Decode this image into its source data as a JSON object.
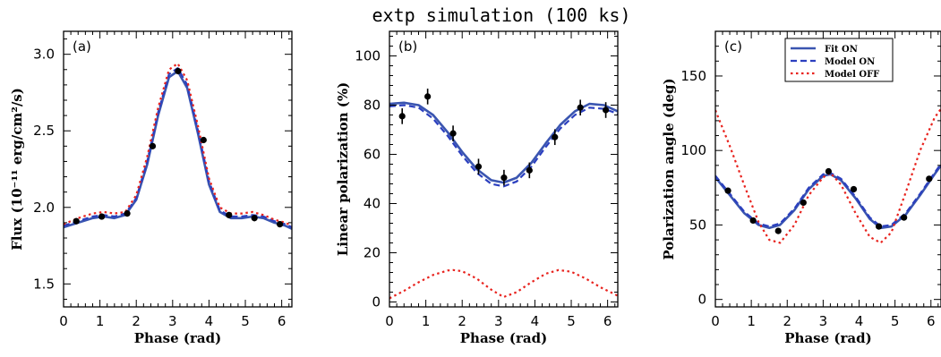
{
  "figure_title": "extp simulation (100 ks)",
  "colors": {
    "fit": "#3a55b0",
    "model_on": "#2b3fbf",
    "model_off": "#e8231e",
    "points": "#000000"
  },
  "chart_data": [
    {
      "type": "line",
      "panel_label": "(a)",
      "title": "",
      "xlabel": "Phase (rad)",
      "ylabel": "Flux (10⁻¹¹ erg/cm²/s)",
      "xlim": [
        0,
        6.28
      ],
      "ylim": [
        1.35,
        3.15
      ],
      "xticks": [
        0,
        1,
        2,
        3,
        4,
        5,
        6
      ],
      "yticks": [
        1.5,
        2.0,
        2.5,
        3.0
      ],
      "ytick_labels": [
        "1.5",
        "2.0",
        "2.5",
        "3.0"
      ],
      "grid": false,
      "series": [
        {
          "key": "fit",
          "style": "solid",
          "x": [
            0,
            0.4,
            0.8,
            1.1,
            1.4,
            1.7,
            2.0,
            2.3,
            2.6,
            2.9,
            3.14,
            3.4,
            3.7,
            4.0,
            4.3,
            4.6,
            4.9,
            5.2,
            5.5,
            5.8,
            6.1,
            6.28
          ],
          "y": [
            1.87,
            1.9,
            1.93,
            1.94,
            1.93,
            1.95,
            2.05,
            2.28,
            2.6,
            2.85,
            2.89,
            2.78,
            2.48,
            2.15,
            1.97,
            1.93,
            1.93,
            1.94,
            1.93,
            1.9,
            1.88,
            1.86
          ]
        },
        {
          "key": "model_on",
          "style": "dashed",
          "x": [
            0,
            0.4,
            0.8,
            1.1,
            1.4,
            1.7,
            2.0,
            2.3,
            2.6,
            2.9,
            3.14,
            3.4,
            3.7,
            4.0,
            4.3,
            4.6,
            4.9,
            5.2,
            5.5,
            5.8,
            6.1,
            6.28
          ],
          "y": [
            1.88,
            1.91,
            1.94,
            1.95,
            1.94,
            1.96,
            2.06,
            2.3,
            2.62,
            2.87,
            2.91,
            2.8,
            2.5,
            2.17,
            1.98,
            1.94,
            1.94,
            1.95,
            1.94,
            1.91,
            1.89,
            1.87
          ]
        },
        {
          "key": "model_off",
          "style": "dotted",
          "x": [
            0,
            0.4,
            0.8,
            1.1,
            1.4,
            1.7,
            2.0,
            2.3,
            2.6,
            2.9,
            3.14,
            3.4,
            3.7,
            4.0,
            4.3,
            4.6,
            4.9,
            5.2,
            5.5,
            5.8,
            6.1,
            6.28
          ],
          "y": [
            1.89,
            1.93,
            1.96,
            1.97,
            1.96,
            1.97,
            2.08,
            2.33,
            2.65,
            2.9,
            2.94,
            2.83,
            2.53,
            2.19,
            2.0,
            1.96,
            1.96,
            1.97,
            1.95,
            1.92,
            1.9,
            1.88
          ]
        },
        {
          "key": "points",
          "style": "points",
          "x": [
            0.35,
            1.05,
            1.75,
            2.45,
            3.15,
            3.85,
            4.55,
            5.25,
            5.95
          ],
          "y": [
            1.91,
            1.94,
            1.96,
            2.4,
            2.89,
            2.44,
            1.95,
            1.93,
            1.89
          ],
          "err": [
            0.02,
            0.02,
            0.02,
            0.02,
            0.02,
            0.02,
            0.02,
            0.02,
            0.02
          ]
        }
      ]
    },
    {
      "type": "line",
      "panel_label": "(b)",
      "title": "",
      "xlabel": "Phase (rad)",
      "ylabel": "Linear polarization (%)",
      "xlim": [
        0,
        6.28
      ],
      "ylim": [
        -2,
        110
      ],
      "xticks": [
        0,
        1,
        2,
        3,
        4,
        5,
        6
      ],
      "yticks": [
        0,
        20,
        40,
        60,
        80,
        100
      ],
      "ytick_labels": [
        "0",
        "20",
        "40",
        "60",
        "80",
        "100"
      ],
      "grid": false,
      "series": [
        {
          "key": "fit",
          "style": "solid",
          "x": [
            0,
            0.4,
            0.8,
            1.2,
            1.6,
            2.0,
            2.4,
            2.8,
            3.14,
            3.5,
            3.9,
            4.3,
            4.7,
            5.1,
            5.5,
            5.9,
            6.28
          ],
          "y": [
            80.5,
            81.0,
            80.0,
            76.0,
            69.0,
            61.0,
            54.0,
            49.5,
            48.5,
            50.5,
            56.5,
            64.5,
            72.0,
            77.5,
            80.5,
            80.0,
            77.5
          ]
        },
        {
          "key": "model_on",
          "style": "dashed",
          "x": [
            0,
            0.4,
            0.8,
            1.2,
            1.6,
            2.0,
            2.4,
            2.8,
            3.14,
            3.5,
            3.9,
            4.3,
            4.7,
            5.1,
            5.5,
            5.9,
            6.28
          ],
          "y": [
            79.5,
            80.0,
            79.0,
            74.5,
            67.5,
            59.5,
            52.5,
            48.0,
            47.0,
            49.0,
            55.0,
            63.0,
            70.5,
            76.0,
            79.0,
            78.5,
            76.5
          ]
        },
        {
          "key": "model_off",
          "style": "dotted",
          "x": [
            0,
            0.4,
            0.8,
            1.2,
            1.6,
            1.75,
            2.0,
            2.4,
            2.8,
            3.14,
            3.5,
            3.9,
            4.3,
            4.65,
            5.0,
            5.4,
            5.8,
            6.28
          ],
          "y": [
            1.5,
            4.5,
            8.0,
            11.0,
            12.8,
            13.0,
            12.5,
            9.5,
            5.0,
            2.0,
            4.0,
            8.0,
            11.5,
            13.0,
            12.3,
            9.5,
            6.0,
            2.5
          ]
        },
        {
          "key": "points",
          "style": "points",
          "x": [
            0.35,
            1.05,
            1.75,
            2.45,
            3.15,
            3.85,
            4.55,
            5.25,
            5.95
          ],
          "y": [
            75.5,
            83.5,
            68.5,
            55.0,
            50.5,
            53.5,
            67.0,
            79.0,
            78.0
          ],
          "err": [
            3.2,
            3.2,
            3.2,
            3.2,
            3.2,
            3.2,
            3.2,
            3.2,
            3.2
          ]
        }
      ]
    },
    {
      "type": "line",
      "panel_label": "(c)",
      "title": "",
      "xlabel": "Phase (rad)",
      "ylabel": "Polarization angle (deg)",
      "xlim": [
        0,
        6.28
      ],
      "ylim": [
        -5,
        180
      ],
      "xticks": [
        0,
        1,
        2,
        3,
        4,
        5,
        6
      ],
      "yticks": [
        0,
        50,
        100,
        150
      ],
      "ytick_labels": [
        "0",
        "50",
        "100",
        "150"
      ],
      "grid": false,
      "legend": {
        "placement": "top-right",
        "entries": [
          {
            "key": "fit",
            "label": "Fit ON"
          },
          {
            "key": "model_on",
            "label": "Model ON"
          },
          {
            "key": "model_off",
            "label": "Model OFF"
          }
        ]
      },
      "series": [
        {
          "key": "fit",
          "style": "solid",
          "x": [
            0,
            0.4,
            0.8,
            1.2,
            1.5,
            1.8,
            2.2,
            2.6,
            3.0,
            3.2,
            3.5,
            3.9,
            4.3,
            4.6,
            4.9,
            5.3,
            5.7,
            6.1,
            6.28
          ],
          "y": [
            82,
            70,
            58,
            50,
            48,
            50,
            60,
            74,
            83,
            84,
            80,
            68,
            54,
            48,
            49,
            57,
            70,
            84,
            90
          ]
        },
        {
          "key": "model_on",
          "style": "dashed",
          "x": [
            0,
            0.4,
            0.8,
            1.2,
            1.5,
            1.8,
            2.2,
            2.6,
            3.0,
            3.2,
            3.5,
            3.9,
            4.3,
            4.6,
            4.9,
            5.3,
            5.7,
            6.1,
            6.28
          ],
          "y": [
            83,
            71,
            59,
            51,
            49,
            51,
            61,
            75,
            84,
            85,
            81,
            69,
            55,
            49,
            50,
            58,
            71,
            85,
            91
          ]
        },
        {
          "key": "model_off",
          "style": "dotted",
          "x": [
            0,
            0.4,
            0.8,
            1.2,
            1.5,
            1.8,
            2.2,
            2.6,
            3.0,
            3.2,
            3.5,
            3.9,
            4.3,
            4.6,
            4.9,
            5.3,
            5.7,
            6.1,
            6.28
          ],
          "y": [
            127,
            103,
            77,
            52,
            40,
            38,
            50,
            70,
            82,
            85,
            77,
            58,
            42,
            38,
            45,
            72,
            100,
            122,
            128
          ]
        },
        {
          "key": "points",
          "style": "points",
          "x": [
            0.35,
            1.05,
            1.75,
            2.45,
            3.15,
            3.85,
            4.55,
            5.25,
            5.95
          ],
          "y": [
            73,
            53,
            46,
            65,
            86,
            74,
            49,
            55,
            81
          ],
          "err": [
            2,
            2,
            2,
            2,
            2,
            2,
            2,
            2,
            2
          ]
        }
      ]
    }
  ]
}
